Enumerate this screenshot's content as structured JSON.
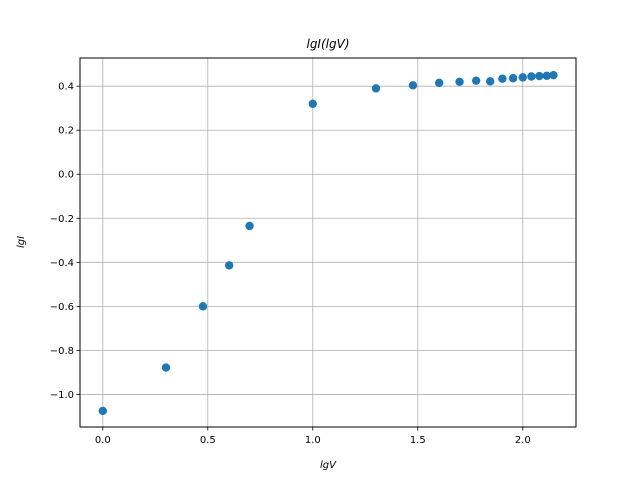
{
  "chart_data": {
    "type": "scatter",
    "title": "lgI(lgV)",
    "xlabel": "lgV",
    "ylabel": "lgI",
    "xlim": [
      -0.1085,
      2.2535
    ],
    "ylim": [
      -1.148,
      0.528
    ],
    "xticks": [
      0.0,
      0.5,
      1.0,
      1.5,
      2.0
    ],
    "xtick_labels": [
      "0.0",
      "0.5",
      "1.0",
      "1.5",
      "2.0"
    ],
    "yticks": [
      -1.0,
      -0.8,
      -0.6,
      -0.4,
      -0.2,
      0.0,
      0.2,
      0.4
    ],
    "ytick_labels": [
      "−1.0",
      "−0.8",
      "−0.6",
      "−0.4",
      "−0.2",
      "0.0",
      "0.2",
      "0.4"
    ],
    "grid": true,
    "marker_color": "#1f77b4",
    "x": [
      0.0,
      0.301,
      0.477,
      0.602,
      0.699,
      1.0,
      1.301,
      1.477,
      1.602,
      1.699,
      1.778,
      1.845,
      1.903,
      1.954,
      2.0,
      2.041,
      2.079,
      2.114,
      2.146
    ],
    "y": [
      -1.075,
      -0.878,
      -0.6,
      -0.414,
      -0.235,
      0.32,
      0.39,
      0.404,
      0.415,
      0.42,
      0.425,
      0.422,
      0.434,
      0.436,
      0.44,
      0.444,
      0.446,
      0.447,
      0.45
    ]
  }
}
